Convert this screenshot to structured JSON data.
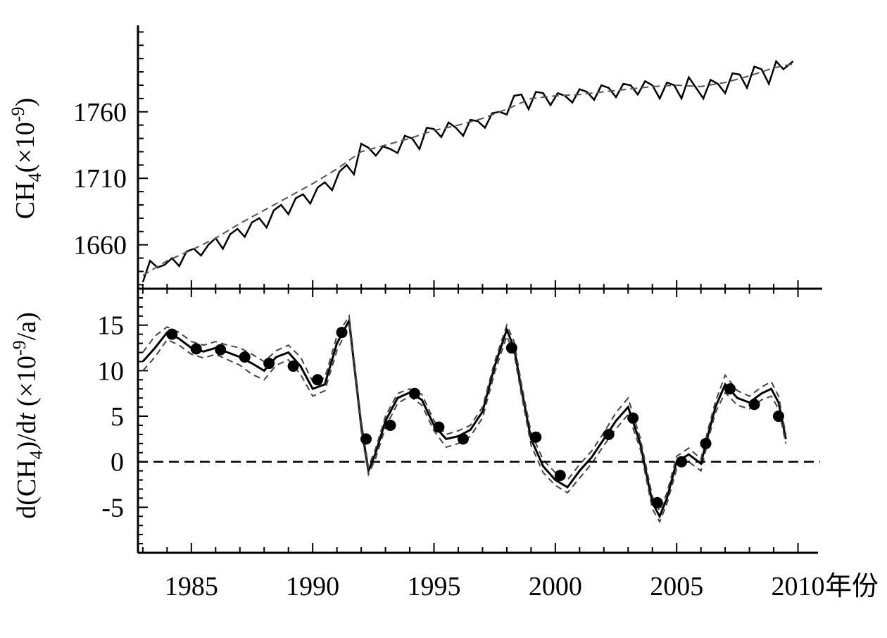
{
  "chart_data": [
    {
      "type": "line",
      "panel": "top",
      "ylabel_main": "CH",
      "ylabel_sub": "4",
      "ylabel_rest": "(×10",
      "ylabel_sup": "-9",
      "ylabel_close": ")",
      "yticks": [
        1660,
        1710,
        1760
      ],
      "ylim": [
        1627,
        1825
      ],
      "xlim": [
        1982.8,
        2011.0
      ],
      "series": [
        {
          "style": "solid",
          "x": [
            1983.0,
            1983.3,
            1983.6,
            1983.9,
            1984.2,
            1984.5,
            1984.8,
            1985.1,
            1985.4,
            1985.7,
            1986.0,
            1986.3,
            1986.6,
            1986.9,
            1987.2,
            1987.5,
            1987.8,
            1988.1,
            1988.4,
            1988.7,
            1989.0,
            1989.3,
            1989.6,
            1989.9,
            1990.2,
            1990.5,
            1990.8,
            1991.1,
            1991.4,
            1991.7,
            1992.0,
            1992.3,
            1992.6,
            1992.9,
            1993.2,
            1993.5,
            1993.8,
            1994.1,
            1994.4,
            1994.7,
            1995.0,
            1995.3,
            1995.6,
            1995.9,
            1996.2,
            1996.5,
            1996.8,
            1997.1,
            1997.4,
            1997.7,
            1998.0,
            1998.3,
            1998.6,
            1998.9,
            1999.2,
            1999.5,
            1999.8,
            2000.1,
            2000.4,
            2000.7,
            2001.0,
            2001.3,
            2001.6,
            2001.9,
            2002.2,
            2002.5,
            2002.8,
            2003.1,
            2003.4,
            2003.7,
            2004.0,
            2004.3,
            2004.6,
            2004.9,
            2005.2,
            2005.5,
            2005.8,
            2006.1,
            2006.4,
            2006.7,
            2007.0,
            2007.3,
            2007.6,
            2007.9,
            2008.2,
            2008.5,
            2008.8,
            2009.1,
            2009.4,
            2009.8
          ],
          "y": [
            1632,
            1648,
            1643,
            1645,
            1650,
            1644,
            1655,
            1657,
            1652,
            1660,
            1665,
            1657,
            1668,
            1672,
            1666,
            1677,
            1680,
            1673,
            1686,
            1690,
            1683,
            1695,
            1698,
            1691,
            1703,
            1707,
            1701,
            1715,
            1720,
            1713,
            1736,
            1733,
            1727,
            1734,
            1732,
            1729,
            1742,
            1740,
            1732,
            1748,
            1747,
            1741,
            1752,
            1748,
            1742,
            1754,
            1753,
            1748,
            1759,
            1760,
            1758,
            1772,
            1773,
            1762,
            1775,
            1774,
            1765,
            1774,
            1772,
            1767,
            1777,
            1775,
            1769,
            1780,
            1778,
            1771,
            1781,
            1780,
            1773,
            1783,
            1780,
            1770,
            1782,
            1780,
            1770,
            1786,
            1778,
            1770,
            1784,
            1781,
            1774,
            1789,
            1788,
            1778,
            1794,
            1792,
            1781,
            1798,
            1792,
            1798
          ]
        },
        {
          "style": "dashed",
          "x": [
            1983.0,
            1984.0,
            1985.0,
            1986.0,
            1987.0,
            1988.0,
            1989.0,
            1990.0,
            1991.0,
            1992.0,
            1993.0,
            1994.0,
            1995.0,
            1996.0,
            1997.0,
            1998.0,
            1999.0,
            2000.0,
            2001.0,
            2002.0,
            2003.0,
            2004.0,
            2005.0,
            2006.0,
            2007.0,
            2008.0,
            2009.0,
            2009.8
          ],
          "y": [
            1637,
            1648,
            1656,
            1665,
            1676,
            1686,
            1696,
            1706,
            1717,
            1730,
            1735,
            1740,
            1746,
            1750,
            1755,
            1762,
            1770,
            1772,
            1773,
            1775,
            1777,
            1779,
            1780,
            1779,
            1782,
            1787,
            1793,
            1796
          ]
        }
      ]
    },
    {
      "type": "line",
      "panel": "bottom",
      "ylabel_a": "d(CH",
      "ylabel_sub": "4",
      "ylabel_b": ")/d",
      "ylabel_t": "t",
      "ylabel_c": " (×10",
      "ylabel_sup": "-9",
      "ylabel_d": "/a)",
      "yticks": [
        -5,
        0,
        5,
        10,
        15
      ],
      "ytick_labels": [
        "-5",
        "0",
        "5",
        "10",
        "15"
      ],
      "ylim": [
        -10,
        19
      ],
      "xlim": [
        1982.8,
        2011.0
      ],
      "xticks": [
        1985,
        1990,
        1995,
        2000,
        2005,
        2010
      ],
      "xtick_labels": [
        "1985",
        "1990",
        "1995",
        "2000",
        "2005",
        "2010"
      ],
      "xunit": "年份",
      "series": [
        {
          "style": "solid",
          "x": [
            1983.0,
            1983.5,
            1984.0,
            1984.5,
            1985.0,
            1985.5,
            1986.0,
            1986.5,
            1987.0,
            1987.5,
            1988.0,
            1988.5,
            1989.0,
            1989.5,
            1990.0,
            1990.5,
            1991.0,
            1991.5,
            1992.0,
            1992.3,
            1992.6,
            1993.0,
            1993.5,
            1994.0,
            1994.5,
            1995.0,
            1995.5,
            1996.0,
            1996.5,
            1997.0,
            1997.5,
            1998.0,
            1998.3,
            1998.6,
            1999.0,
            1999.5,
            2000.0,
            2000.5,
            2001.0,
            2001.5,
            2002.0,
            2002.5,
            2003.0,
            2003.5,
            2004.0,
            2004.3,
            2004.6,
            2005.0,
            2005.5,
            2006.0,
            2006.3,
            2006.6,
            2007.0,
            2007.5,
            2008.0,
            2008.5,
            2008.9,
            2009.2,
            2009.5
          ],
          "y": [
            11,
            12.5,
            14.2,
            13.5,
            12.5,
            12.1,
            12.5,
            12.0,
            11.5,
            10.8,
            10.0,
            11.5,
            12.0,
            10.5,
            8.0,
            8.5,
            13.0,
            15.5,
            4.0,
            -1.0,
            1.0,
            4.5,
            7.0,
            7.6,
            6.8,
            4.0,
            2.5,
            2.8,
            3.5,
            5.5,
            10.5,
            14.5,
            12.5,
            8.0,
            2.5,
            -0.5,
            -2.0,
            -2.8,
            -1.0,
            0.5,
            2.5,
            4.5,
            6.0,
            2.0,
            -4.5,
            -6.0,
            -4.0,
            0.0,
            0.8,
            -0.2,
            3.0,
            6.0,
            8.5,
            7.0,
            6.5,
            7.5,
            8.0,
            6.5,
            2.5
          ]
        },
        {
          "style": "dashed",
          "x": [
            1983.0,
            1983.5,
            1984.0,
            1984.5,
            1985.0,
            1985.5,
            1986.0,
            1986.5,
            1987.0,
            1987.5,
            1988.0,
            1988.5,
            1989.0,
            1989.5,
            1990.0,
            1990.5,
            1991.0,
            1991.5,
            1992.0,
            1992.3,
            1992.6,
            1993.0,
            1993.5,
            1994.0,
            1994.5,
            1995.0,
            1995.5,
            1996.0,
            1996.5,
            1997.0,
            1997.5,
            1998.0,
            1998.3,
            1998.6,
            1999.0,
            1999.5,
            2000.0,
            2000.5,
            2001.0,
            2001.5,
            2002.0,
            2002.5,
            2003.0,
            2003.5,
            2004.0,
            2004.3,
            2004.6,
            2005.0,
            2005.5,
            2006.0,
            2006.3,
            2006.6,
            2007.0,
            2007.5,
            2008.0,
            2008.5,
            2008.9,
            2009.2,
            2009.5
          ],
          "y": [
            12,
            13.8,
            14.8,
            14.2,
            13.2,
            12.8,
            13.2,
            12.8,
            12.5,
            11.8,
            11.0,
            12.2,
            12.8,
            11.5,
            8.8,
            9.2,
            13.8,
            16.0,
            4.5,
            -0.6,
            1.5,
            5.0,
            7.5,
            8.0,
            7.4,
            4.5,
            3.0,
            3.4,
            4.0,
            6.0,
            11.0,
            15.0,
            13.2,
            8.6,
            3.2,
            0.2,
            -1.2,
            -2.0,
            -0.3,
            1.2,
            3.2,
            5.4,
            7.0,
            2.6,
            -3.8,
            -5.4,
            -3.4,
            0.6,
            1.5,
            0.3,
            3.6,
            6.6,
            9.5,
            7.8,
            7.2,
            8.2,
            8.8,
            7.2,
            3.0
          ]
        },
        {
          "style": "dashed",
          "x": [
            1983.0,
            1983.5,
            1984.0,
            1984.5,
            1985.0,
            1985.5,
            1986.0,
            1986.5,
            1987.0,
            1987.5,
            1988.0,
            1988.5,
            1989.0,
            1989.5,
            1990.0,
            1990.5,
            1991.0,
            1991.5,
            1992.0,
            1992.3,
            1992.6,
            1993.0,
            1993.5,
            1994.0,
            1994.5,
            1995.0,
            1995.5,
            1996.0,
            1996.5,
            1997.0,
            1997.5,
            1998.0,
            1998.3,
            1998.6,
            1999.0,
            1999.5,
            2000.0,
            2000.5,
            2001.0,
            2001.5,
            2002.0,
            2002.5,
            2003.0,
            2003.5,
            2004.0,
            2004.3,
            2004.6,
            2005.0,
            2005.5,
            2006.0,
            2006.3,
            2006.6,
            2007.0,
            2007.5,
            2008.0,
            2008.5,
            2008.9,
            2009.2,
            2009.5
          ],
          "y": [
            10,
            11.5,
            13.4,
            12.8,
            11.8,
            11.4,
            11.8,
            11.2,
            10.6,
            9.6,
            9.0,
            10.6,
            11.2,
            9.6,
            7.2,
            7.8,
            12.2,
            15.0,
            3.4,
            -1.4,
            0.4,
            3.8,
            6.4,
            7.2,
            6.2,
            3.4,
            1.6,
            2.0,
            2.8,
            4.8,
            9.8,
            13.8,
            11.8,
            7.4,
            1.8,
            -1.2,
            -2.6,
            -3.4,
            -1.8,
            -0.2,
            1.8,
            3.6,
            5.2,
            1.4,
            -5.2,
            -6.6,
            -4.6,
            -0.8,
            0.0,
            -1.0,
            2.4,
            5.4,
            7.6,
            6.2,
            5.8,
            6.8,
            7.2,
            5.8,
            2.0
          ]
        },
        {
          "style": "markers",
          "x": [
            1984.2,
            1985.2,
            1986.2,
            1987.2,
            1988.2,
            1989.2,
            1990.2,
            1991.2,
            1992.2,
            1993.2,
            1994.2,
            1995.2,
            1996.2,
            1997.2,
            1998.2,
            1999.2,
            2000.2,
            2001.2,
            2002.2,
            2003.2,
            2004.2,
            2005.2,
            2006.2,
            2007.2,
            2008.2,
            2009.2
          ],
          "y": [
            14.0,
            12.4,
            12.3,
            11.5,
            10.8,
            10.5,
            9.0,
            14.2,
            2.5,
            4.0,
            7.5,
            3.8,
            2.5,
            null,
            12.5,
            2.7,
            -1.5,
            null,
            3.0,
            4.8,
            -4.5,
            0.0,
            2.0,
            8.0,
            6.3,
            5.0
          ]
        },
        {
          "style": "zero-line",
          "y": 0
        }
      ]
    }
  ]
}
